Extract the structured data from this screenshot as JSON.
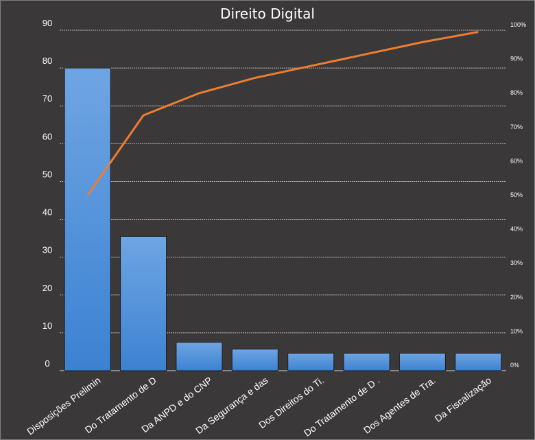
{
  "chart_data": {
    "type": "bar",
    "title": "Direito Digital",
    "categories": [
      "Disposições Prelimin",
      "Do Tratamento de D",
      "Da ANPD e do CNP",
      "Da Segurança e das",
      "Dos Direitos do Ti.",
      "Do Tratamento de D .",
      "Dos Agentes de Tra.",
      "Da Fiscalização"
    ],
    "series": [
      {
        "type": "bar",
        "values": [
          80,
          35.5,
          7.5,
          5.7,
          4.6,
          4.6,
          4.6,
          4.6
        ]
      },
      {
        "type": "line",
        "axis": "secondary",
        "values": [
          51.5,
          75,
          81.5,
          86,
          89.5,
          93,
          96.5,
          99.5
        ]
      }
    ],
    "ylim": [
      0,
      90
    ],
    "yticks": [
      "0",
      "10",
      "20",
      "30",
      "40",
      "50",
      "60",
      "70",
      "80",
      "90"
    ],
    "y2lim": [
      0,
      100
    ],
    "y2ticks": [
      "0%",
      "10%",
      "20%",
      "30%",
      "40%",
      "50%",
      "60%",
      "70%",
      "80%",
      "90%",
      "100%"
    ],
    "grid": true,
    "legend": "none",
    "colors": {
      "background": "#3a3838",
      "bar_top": "#6fa5e3",
      "bar_bottom": "#3c82d2",
      "line": "#ed7d31",
      "grid": "#d9d9d9",
      "text": "#ffffff"
    }
  }
}
